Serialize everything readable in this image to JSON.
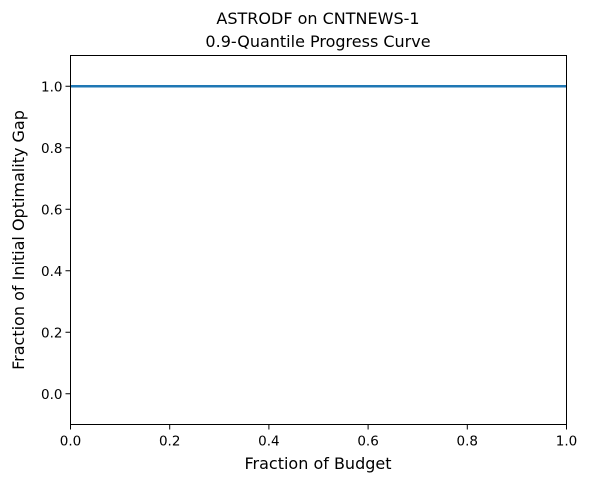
{
  "chart_data": {
    "type": "line",
    "title": "ASTRODF on CNTNEWS-1",
    "subtitle": "0.9-Quantile Progress Curve",
    "xlabel": "Fraction of Budget",
    "ylabel": "Fraction of Initial Optimality Gap",
    "xlim": [
      0.0,
      1.0
    ],
    "ylim": [
      -0.1,
      1.1
    ],
    "xticks": [
      "0.0",
      "0.2",
      "0.4",
      "0.6",
      "0.8",
      "1.0"
    ],
    "yticks": [
      "0.0",
      "0.2",
      "0.4",
      "0.6",
      "0.8",
      "1.0"
    ],
    "grid": false,
    "series": [
      {
        "color": "#1f77b4",
        "x": [
          0.0,
          1.0
        ],
        "y": [
          1.0,
          1.0
        ]
      }
    ]
  }
}
